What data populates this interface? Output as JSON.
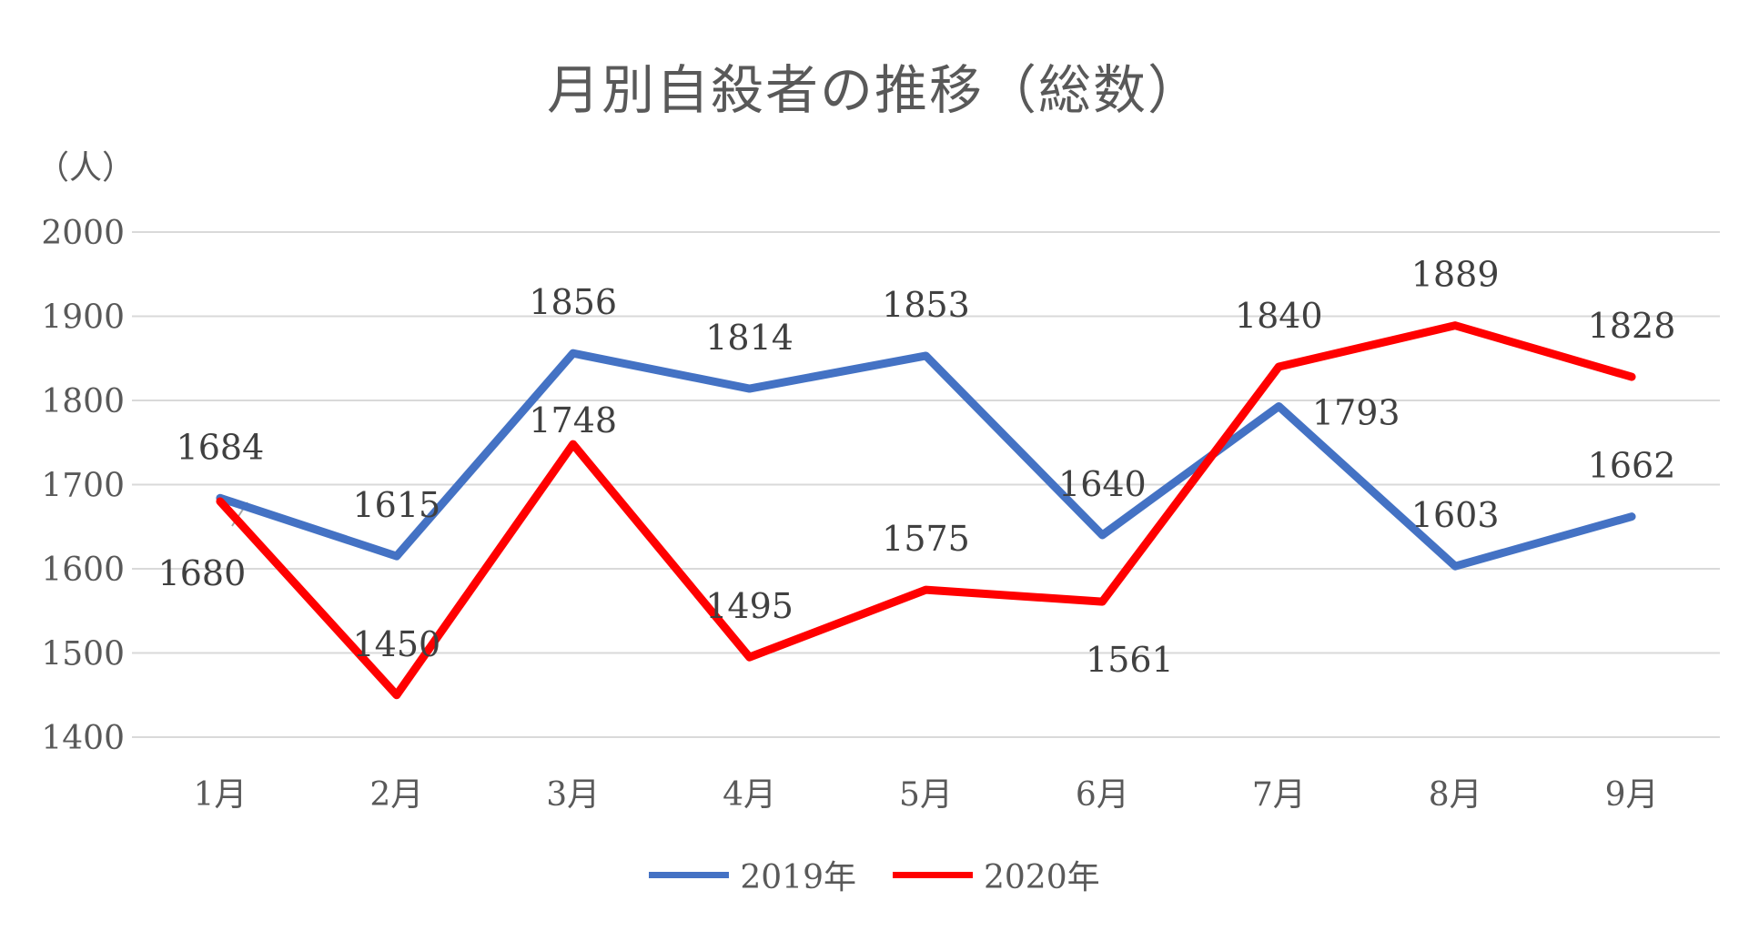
{
  "chart_data": {
    "type": "line",
    "title": "月別自殺者の推移（総数）",
    "ylabel": "（人）",
    "xlabel": "",
    "categories": [
      "1月",
      "2月",
      "3月",
      "4月",
      "5月",
      "6月",
      "7月",
      "8月",
      "9月"
    ],
    "ylim": [
      1400,
      2000
    ],
    "yticks": [
      "2000",
      "1900",
      "1800",
      "1700",
      "1600",
      "1500",
      "1400"
    ],
    "grid": true,
    "legend": "bottom",
    "series": [
      {
        "name": "2019年",
        "color": "#4472C4",
        "values": [
          1684,
          1615,
          1856,
          1814,
          1853,
          1640,
          1793,
          1603,
          1662
        ]
      },
      {
        "name": "2020年",
        "color": "#FF0000",
        "values": [
          1680,
          1450,
          1748,
          1495,
          1575,
          1561,
          1840,
          1889,
          1828
        ]
      }
    ]
  }
}
